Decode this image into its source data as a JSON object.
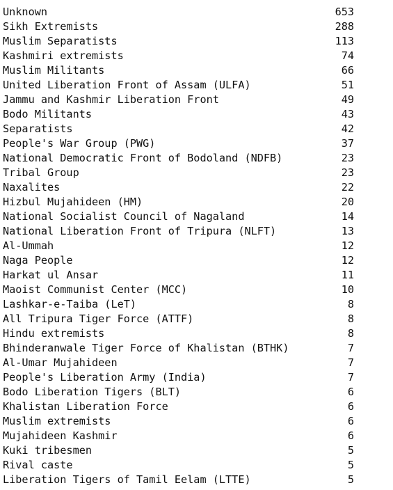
{
  "output": {
    "rows": [
      {
        "name": "Unknown",
        "count": "653"
      },
      {
        "name": "Sikh Extremists",
        "count": "288"
      },
      {
        "name": "Muslim Separatists",
        "count": "113"
      },
      {
        "name": "Kashmiri extremists",
        "count": "74"
      },
      {
        "name": "Muslim Militants",
        "count": "66"
      },
      {
        "name": "United Liberation Front of Assam (ULFA)",
        "count": "51"
      },
      {
        "name": "Jammu and Kashmir Liberation Front",
        "count": "49"
      },
      {
        "name": "Bodo Militants",
        "count": "43"
      },
      {
        "name": "Separatists",
        "count": "42"
      },
      {
        "name": "People's War Group (PWG)",
        "count": "37"
      },
      {
        "name": "National Democratic Front of Bodoland (NDFB)",
        "count": "23"
      },
      {
        "name": "Tribal Group",
        "count": "23"
      },
      {
        "name": "Naxalites",
        "count": "22"
      },
      {
        "name": "Hizbul Mujahideen (HM)",
        "count": "20"
      },
      {
        "name": "National Socialist Council of Nagaland",
        "count": "14"
      },
      {
        "name": "National Liberation Front of Tripura (NLFT)",
        "count": "13"
      },
      {
        "name": "Al-Ummah",
        "count": "12"
      },
      {
        "name": "Naga People",
        "count": "12"
      },
      {
        "name": "Harkat ul Ansar",
        "count": "11"
      },
      {
        "name": "Maoist Communist Center (MCC)",
        "count": "10"
      },
      {
        "name": "Lashkar-e-Taiba (LeT)",
        "count": "8"
      },
      {
        "name": "All Tripura Tiger Force (ATTF)",
        "count": "8"
      },
      {
        "name": "Hindu extremists",
        "count": "8"
      },
      {
        "name": "Bhinderanwale Tiger Force of Khalistan (BTHK)",
        "count": "7"
      },
      {
        "name": "Al-Umar Mujahideen",
        "count": "7"
      },
      {
        "name": "People's Liberation Army (India)",
        "count": "7"
      },
      {
        "name": "Bodo Liberation Tigers (BLT)",
        "count": "6"
      },
      {
        "name": "Khalistan Liberation Force",
        "count": "6"
      },
      {
        "name": "Muslim extremists",
        "count": "6"
      },
      {
        "name": "Mujahideen Kashmir",
        "count": "6"
      },
      {
        "name": "Kuki tribesmen",
        "count": "5"
      },
      {
        "name": "Rival caste",
        "count": "5"
      },
      {
        "name": "Liberation Tigers of Tamil Eelam (LTTE)",
        "count": "5"
      }
    ]
  }
}
